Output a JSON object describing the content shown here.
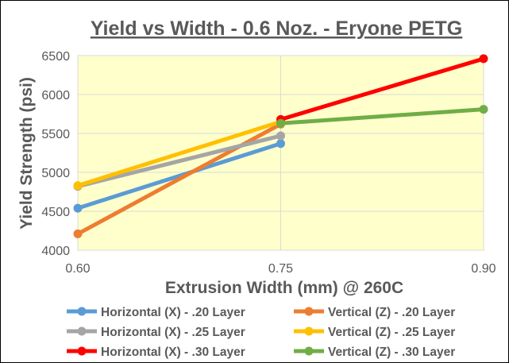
{
  "chart_data": {
    "type": "line",
    "title": "Yield vs Width - 0.6 Noz. - Eryone PETG",
    "xlabel": "Extrusion Width (mm) @ 260C",
    "ylabel": "Yield Strength (psi)",
    "x_ticks": [
      "0.60",
      "0.75",
      "0.90"
    ],
    "x_values": [
      0.6,
      0.75,
      0.9
    ],
    "xlim": [
      0.6,
      0.9
    ],
    "ylim": [
      4000,
      6500
    ],
    "y_ticks": [
      "4000",
      "4500",
      "5000",
      "5500",
      "6000",
      "6500"
    ],
    "y_tick_values": [
      4000,
      4500,
      5000,
      5500,
      6000,
      6500
    ],
    "grid": "on",
    "plot_background": "#ffffcc",
    "legend_position": "bottom",
    "series": [
      {
        "name": "Horizontal (X) - .20 Layer",
        "color": "#5b9bd5",
        "points": [
          [
            0.6,
            4540
          ],
          [
            0.75,
            5370
          ]
        ]
      },
      {
        "name": "Vertical (Z) - .20 Layer",
        "color": "#ed7d31",
        "points": [
          [
            0.6,
            4210
          ],
          [
            0.75,
            5620
          ]
        ]
      },
      {
        "name": "Horizontal (X) - .25 Layer",
        "color": "#a5a5a5",
        "points": [
          [
            0.6,
            4820
          ],
          [
            0.75,
            5470
          ]
        ]
      },
      {
        "name": "Vertical (Z) - .25 Layer",
        "color": "#ffc000",
        "points": [
          [
            0.6,
            4830
          ],
          [
            0.75,
            5650
          ]
        ]
      },
      {
        "name": "Horizontal (X) - .30 Layer",
        "color": "#ff0000",
        "points": [
          [
            0.75,
            5680
          ],
          [
            0.9,
            6460
          ]
        ]
      },
      {
        "name": "Vertical (Z) - .30 Layer",
        "color": "#70ad47",
        "points": [
          [
            0.75,
            5630
          ],
          [
            0.9,
            5810
          ]
        ]
      }
    ]
  }
}
